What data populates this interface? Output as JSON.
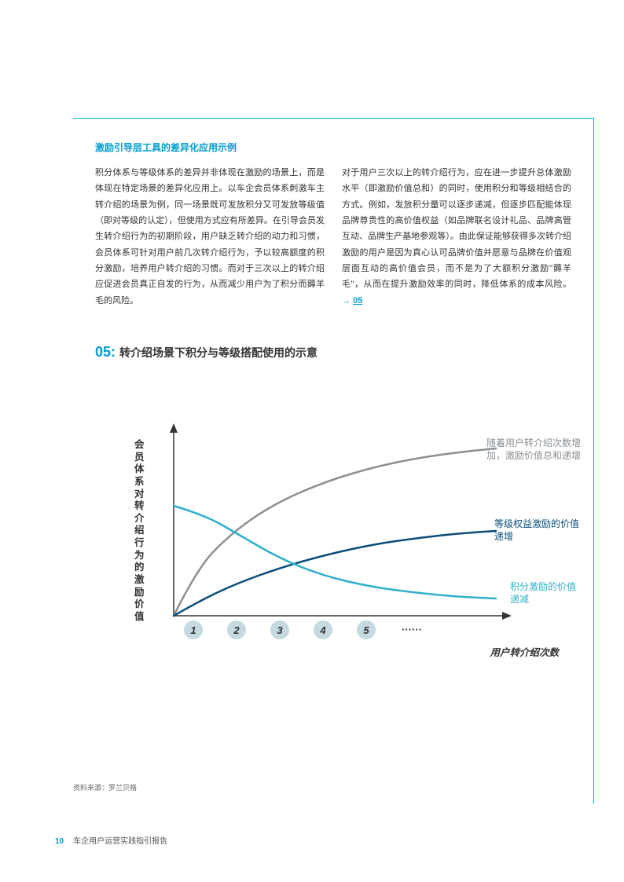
{
  "section_title": "激励引导层工具的差异化应用示例",
  "body_col1": "积分体系与等级体系的差异并非体现在激励的场景上，而是体现在特定场景的差异化应用上。以车企会员体系刺激车主转介绍的场景为例，同一场景既可发放积分又可发放等级值（即对等级的认定），但使用方式应有所差异。在引导会员发生转介绍行为的初期阶段，用户缺乏转介绍的动力和习惯，会员体系可针对用户前几次转介绍行为，予以较高额度的积分激励，培养用户转介绍的习惯。而对于三次以上的转介绍应促进会员真正自发的行为，从而减少用户为了积分而薅羊毛的风险。",
  "body_col2_part1": "对于用户三次以上的转介绍行为，应在进一步提升总体激励水平（即激励价值总和）的同时，使用积分和等级相结合的方式。例如，发放积分量可以逐步递减，但逐步匹配能体现品牌尊贵性的高价值权益（如品牌联名设计礼品、品牌高管互动、品牌生产基地参观等）。由此保证能够获得多次转介绍激励的用户是因为真心认可品牌价值并愿意与品牌在价值观层面互动的高价值会员，而不是为了大额积分激励\"薅羊毛\"，从而在提升激励效率的同时，降低体系的成本风险。",
  "body_col2_ref_arrow": "→",
  "body_col2_ref": "05",
  "fig_num": "05",
  "fig_sep": ":",
  "fig_title": "转介绍场景下积分与等级搭配使用的示意",
  "chart": {
    "y_axis_label": "会员体系对转介绍行为的激励价值",
    "x_axis_label": "用户转介绍次数",
    "x_ticks": [
      "1",
      "2",
      "3",
      "4",
      "5"
    ],
    "x_dots": "······",
    "curves": {
      "total": {
        "label": "随着用户转介绍次数增加，激励价值总和递增",
        "color": "#8a9095",
        "points": [
          [
            60,
            250
          ],
          [
            90,
            190
          ],
          [
            130,
            148
          ],
          [
            180,
            112
          ],
          [
            240,
            84
          ],
          [
            305,
            63
          ],
          [
            370,
            49
          ],
          [
            430,
            41
          ],
          [
            470,
            37
          ]
        ]
      },
      "level": {
        "label": "等级权益激励的价值递增",
        "color": "#0a4d7a",
        "points": [
          [
            60,
            250
          ],
          [
            95,
            230
          ],
          [
            140,
            209
          ],
          [
            195,
            189
          ],
          [
            255,
            172
          ],
          [
            315,
            159
          ],
          [
            370,
            151
          ],
          [
            425,
            145
          ],
          [
            470,
            142
          ]
        ]
      },
      "points_curve": {
        "label": "积分激励的价值递减",
        "color": "#2fb0cc",
        "points": [
          [
            60,
            110
          ],
          [
            100,
            122
          ],
          [
            145,
            148
          ],
          [
            195,
            177
          ],
          [
            250,
            199
          ],
          [
            310,
            213
          ],
          [
            370,
            221
          ],
          [
            425,
            226
          ],
          [
            470,
            228
          ]
        ]
      }
    },
    "axis_color": "#333333",
    "tick_circle_color": "#c5d9e0",
    "y_axis_x": 60,
    "x_axis_y": 250,
    "x_end": 490,
    "y_top": 5,
    "tick_spacing": 55,
    "tick_start_x": 85
  },
  "source": "资料来源：罗兰贝格",
  "footer": {
    "page": "10",
    "title": "车企用户运营实践指引报告"
  }
}
